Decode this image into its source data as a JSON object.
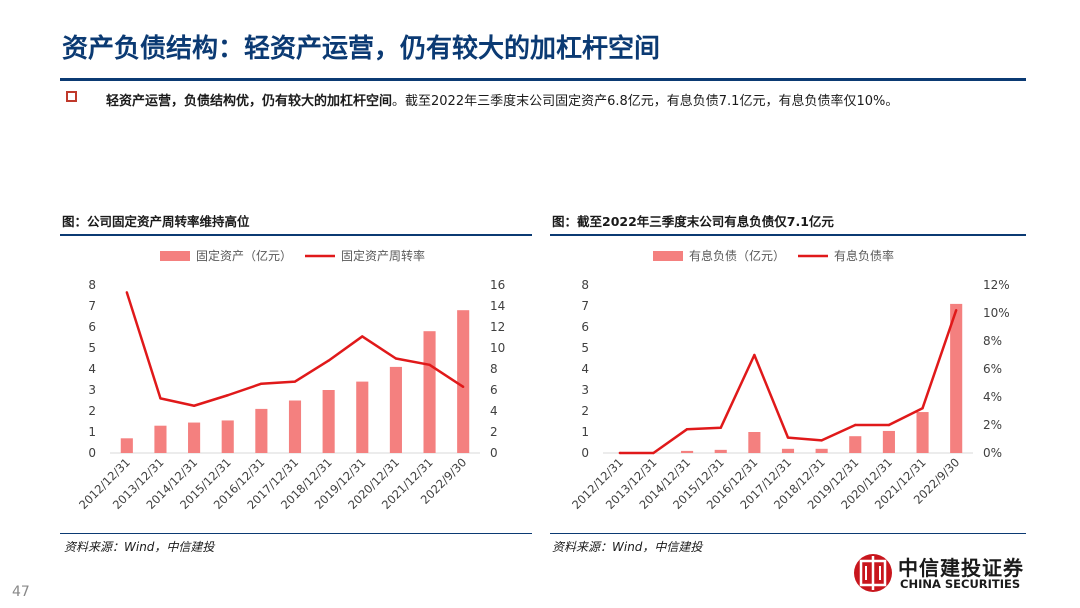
{
  "title": "资产负债结构：轻资产运营，仍有较大的加杠杆空间",
  "bullet": {
    "bold": "轻资产运营，负债结构优，仍有较大的加杠杆空间",
    "text": "。截至2022年三季度末公司固定资产6.8亿元，有息负债7.1亿元，有息负债率仅10%。"
  },
  "page_number": "47",
  "logo": {
    "name_cn": "中信建投证券",
    "name_en": "CHINA SECURITIES"
  },
  "colors": {
    "title": "#0b3a73",
    "bar": "#f4807f",
    "line": "#e0191a",
    "bullet": "#c0392b"
  },
  "chart_data": [
    {
      "type": "bar+line",
      "caption": "图：公司固定资产周转率维持高位",
      "source": "资料来源：Wind，中信建投",
      "categories": [
        "2012/12/31",
        "2013/12/31",
        "2014/12/31",
        "2015/12/31",
        "2016/12/31",
        "2017/12/31",
        "2018/12/31",
        "2019/12/31",
        "2020/12/31",
        "2021/12/31",
        "2022/9/30"
      ],
      "bar_series": {
        "name": "固定资产（亿元）",
        "values": [
          0.7,
          1.3,
          1.45,
          1.55,
          2.1,
          2.5,
          3.0,
          3.4,
          4.1,
          5.8,
          6.8
        ]
      },
      "line_series": {
        "name": "固定资产周转率",
        "values": [
          15.3,
          5.2,
          4.5,
          5.5,
          6.6,
          6.8,
          8.8,
          11.1,
          9.0,
          8.4,
          6.3
        ]
      },
      "y_left": {
        "min": 0,
        "max": 8,
        "ticks": [
          "0",
          "1",
          "2",
          "3",
          "4",
          "5",
          "6",
          "7",
          "8"
        ]
      },
      "y_right": {
        "min": 0,
        "max": 16,
        "ticks": [
          "0",
          "2",
          "4",
          "6",
          "8",
          "10",
          "12",
          "14",
          "16"
        ]
      }
    },
    {
      "type": "bar+line",
      "caption": "图：截至2022年三季度末公司有息负债仅7.1亿元",
      "source": "资料来源：Wind，中信建投",
      "categories": [
        "2012/12/31",
        "2013/12/31",
        "2014/12/31",
        "2015/12/31",
        "2016/12/31",
        "2017/12/31",
        "2018/12/31",
        "2019/12/31",
        "2020/12/31",
        "2021/12/31",
        "2022/9/30"
      ],
      "bar_series": {
        "name": "有息负债（亿元）",
        "values": [
          0,
          0,
          0.1,
          0.15,
          1.0,
          0.2,
          0.2,
          0.8,
          1.05,
          1.95,
          7.1
        ]
      },
      "line_series": {
        "name": "有息负债率",
        "values": [
          0,
          0,
          1.7,
          1.8,
          7.0,
          1.1,
          0.9,
          2.0,
          2.0,
          3.2,
          10.2
        ]
      },
      "y_left": {
        "min": 0,
        "max": 8,
        "ticks": [
          "0",
          "1",
          "2",
          "3",
          "4",
          "5",
          "6",
          "7",
          "8"
        ]
      },
      "y_right": {
        "min": 0,
        "max": 12,
        "ticks": [
          "0%",
          "2%",
          "4%",
          "6%",
          "8%",
          "10%",
          "12%"
        ]
      }
    }
  ]
}
